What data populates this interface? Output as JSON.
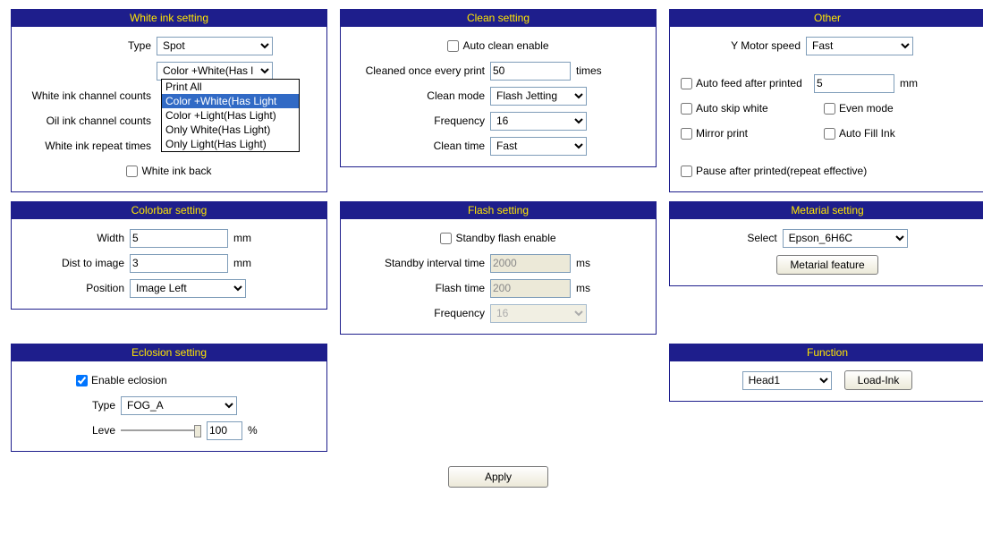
{
  "whiteInk": {
    "title": "White ink setting",
    "type_label": "Type",
    "type_value": "Spot",
    "second_value": "Color +White(Has l",
    "dropdown_options": [
      "Print All",
      "Color +White(Has Light",
      "Color +Light(Has Light)",
      "Only White(Has Light)",
      "Only Light(Has Light)"
    ],
    "dropdown_selected_index": 1,
    "channel_label": "White ink channel counts",
    "oil_label": "Oil ink channel counts",
    "repeat_label": "White ink repeat times",
    "back_label": "White ink back",
    "back_checked": false
  },
  "colorbar": {
    "title": "Colorbar setting",
    "width_label": "Width",
    "width_value": "5",
    "width_unit": "mm",
    "dist_label": "Dist to image",
    "dist_value": "3",
    "dist_unit": "mm",
    "position_label": "Position",
    "position_value": "Image Left"
  },
  "eclosion": {
    "title": "Eclosion setting",
    "enable_label": "Enable eclosion",
    "enable_checked": true,
    "type_label": "Type",
    "type_value": "FOG_A",
    "level_label": "Leve",
    "level_value": "100",
    "level_unit": "%"
  },
  "clean": {
    "title": "Clean setting",
    "auto_label": "Auto clean enable",
    "auto_checked": false,
    "once_label": "Cleaned once every print",
    "once_value": "50",
    "once_unit": "times",
    "mode_label": "Clean mode",
    "mode_value": "Flash Jetting",
    "freq_label": "Frequency",
    "freq_value": "16",
    "time_label": "Clean time",
    "time_value": "Fast"
  },
  "flash": {
    "title": "Flash setting",
    "standby_label": "Standby flash enable",
    "standby_checked": false,
    "interval_label": "Standby interval time",
    "interval_value": "2000",
    "interval_unit": "ms",
    "time_label": "Flash time",
    "time_value": "200",
    "time_unit": "ms",
    "freq_label": "Frequency",
    "freq_value": "16"
  },
  "other": {
    "title": "Other",
    "ymotor_label": "Y Motor speed",
    "ymotor_value": "Fast",
    "autofeed_label": "Auto feed after printed",
    "autofeed_checked": false,
    "autofeed_value": "5",
    "autofeed_unit": "mm",
    "autoskip_label": "Auto skip white",
    "autoskip_checked": false,
    "even_label": "Even mode",
    "even_checked": false,
    "mirror_label": "Mirror print",
    "mirror_checked": false,
    "autofill_label": "Auto Fill Ink",
    "autofill_checked": false,
    "pause_label": "Pause after printed(repeat effective)",
    "pause_checked": false
  },
  "material": {
    "title": "Metarial setting",
    "select_label": "Select",
    "select_value": "Epson_6H6C",
    "feature_btn": "Metarial feature"
  },
  "function": {
    "title": "Function",
    "head_value": "Head1",
    "load_btn": "Load-Ink"
  },
  "apply_btn": "Apply",
  "colors": {
    "panel_border": "#1e1e8c",
    "panel_header_bg": "#1e1e8c",
    "panel_header_fg": "#ffe600",
    "selection_bg": "#316ac5",
    "selection_fg": "#ffffff",
    "input_border": "#7f9db9",
    "disabled_bg": "#ece9d8"
  }
}
